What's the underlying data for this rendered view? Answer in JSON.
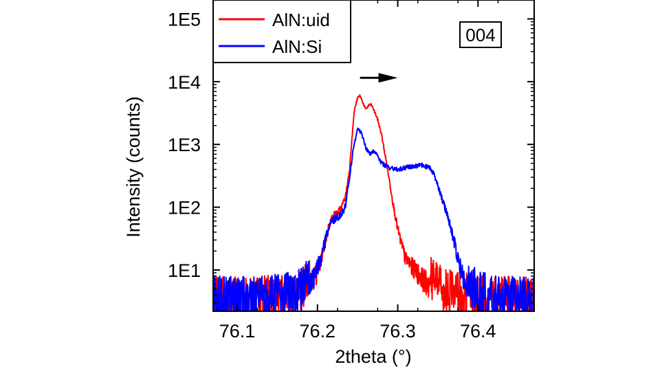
{
  "chart_data": {
    "type": "line",
    "title": "",
    "xlabel": "2theta (°)",
    "ylabel": "Intensity (counts)",
    "xlim": [
      76.07,
      76.47
    ],
    "ylim": [
      2.2,
      200000
    ],
    "yscale": "log",
    "x_ticks": [
      76.1,
      76.2,
      76.3,
      76.4
    ],
    "x_tick_labels": [
      "76.1",
      "76.2",
      "76.3",
      "76.4"
    ],
    "y_ticks": [
      10,
      100,
      1000,
      10000,
      100000
    ],
    "y_tick_labels": [
      "1E1",
      "1E2",
      "1E3",
      "1E4",
      "1E5"
    ],
    "grid": false,
    "legend_position": "top-left",
    "annotation": "004",
    "arrow": {
      "direction": "right",
      "x_from": 76.253,
      "x_to": 76.3,
      "y": 11500
    },
    "series": [
      {
        "name": "AlN:uid",
        "color": "#ff0000",
        "x": [
          76.07,
          76.09,
          76.11,
          76.13,
          76.15,
          76.17,
          76.18,
          76.19,
          76.2,
          76.205,
          76.21,
          76.215,
          76.22,
          76.225,
          76.23,
          76.235,
          76.24,
          76.243,
          76.246,
          76.25,
          76.253,
          76.257,
          76.26,
          76.264,
          76.267,
          76.27,
          76.275,
          76.28,
          76.285,
          76.29,
          76.295,
          76.3,
          76.305,
          76.31,
          76.32,
          76.33,
          76.34,
          76.35,
          76.36,
          76.38,
          76.4,
          76.43,
          76.47
        ],
        "y": [
          3,
          3,
          3,
          3,
          3.2,
          3.5,
          4,
          6,
          10,
          15,
          30,
          55,
          75,
          80,
          100,
          150,
          400,
          1300,
          3500,
          5500,
          6000,
          4500,
          3600,
          4200,
          4300,
          3600,
          2500,
          1400,
          600,
          250,
          100,
          45,
          25,
          15,
          11,
          8,
          6,
          5,
          4,
          3.5,
          3,
          3,
          3
        ]
      },
      {
        "name": "AlN:Si",
        "color": "#0000ff",
        "x": [
          76.07,
          76.09,
          76.11,
          76.13,
          76.15,
          76.17,
          76.18,
          76.19,
          76.2,
          76.205,
          76.21,
          76.215,
          76.22,
          76.225,
          76.23,
          76.235,
          76.24,
          76.245,
          76.25,
          76.255,
          76.26,
          76.265,
          76.27,
          76.275,
          76.28,
          76.29,
          76.3,
          76.31,
          76.32,
          76.33,
          76.34,
          76.345,
          76.35,
          76.355,
          76.36,
          76.365,
          76.37,
          76.375,
          76.38,
          76.39,
          76.4,
          76.43,
          76.47
        ],
        "y": [
          3,
          3,
          3,
          3,
          3.3,
          3.6,
          4,
          6,
          11,
          17,
          30,
          50,
          65,
          70,
          75,
          110,
          300,
          900,
          1800,
          1500,
          900,
          700,
          800,
          650,
          500,
          420,
          400,
          430,
          450,
          470,
          420,
          340,
          220,
          140,
          90,
          55,
          30,
          16,
          9,
          5,
          3.5,
          3,
          3
        ]
      }
    ]
  }
}
